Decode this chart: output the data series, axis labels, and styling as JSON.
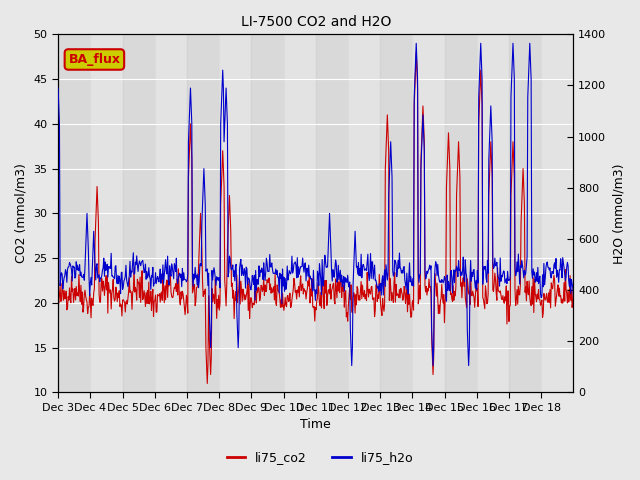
{
  "title": "LI-7500 CO2 and H2O",
  "xlabel": "Time",
  "ylabel_left": "CO2 (mmol/m3)",
  "ylabel_right": "H2O (mmol/m3)",
  "ylim_left": [
    10,
    50
  ],
  "ylim_right": [
    0,
    1400
  ],
  "yticks_left": [
    10,
    15,
    20,
    25,
    30,
    35,
    40,
    45,
    50
  ],
  "yticks_right": [
    0,
    200,
    400,
    600,
    800,
    1000,
    1200,
    1400
  ],
  "color_co2": "#cc0000",
  "color_h2o": "#0000cc",
  "legend_label_co2": "li75_co2",
  "legend_label_h2o": "li75_h2o",
  "annotation_text": "BA_flux",
  "annotation_bg": "#cccc00",
  "annotation_border": "#cc0000",
  "bg_color": "#e8e8e8",
  "n_days": 16,
  "xticklabels": [
    "Dec 3",
    "Dec 4",
    "Dec 5",
    "Dec 6",
    "Dec 7",
    "Dec 8",
    "Dec 9",
    "Dec 10",
    "Dec 11",
    "Dec 12",
    "Dec 13",
    "Dec 14",
    "Dec 15",
    "Dec 16",
    "Dec 17",
    "Dec 18"
  ],
  "seed": 42
}
